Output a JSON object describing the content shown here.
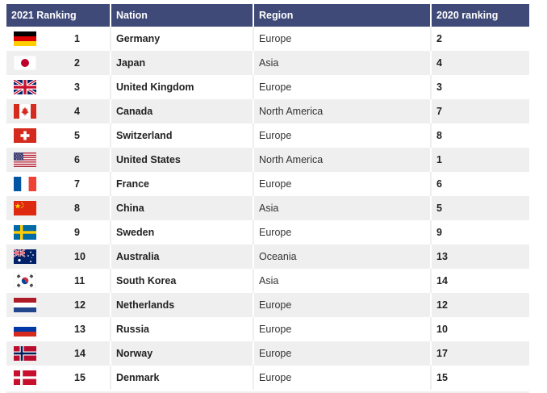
{
  "headers": {
    "rank_2021": "2021 Ranking",
    "nation": "Nation",
    "region": "Region",
    "rank_2020": "2020 ranking"
  },
  "rows": [
    {
      "rank": "1",
      "nation": "Germany",
      "region": "Europe",
      "prev": "2",
      "flag": "germany-flag-icon"
    },
    {
      "rank": "2",
      "nation": "Japan",
      "region": "Asia",
      "prev": "4",
      "flag": "japan-flag-icon"
    },
    {
      "rank": "3",
      "nation": "United Kingdom",
      "region": "Europe",
      "prev": "3",
      "flag": "united-kingdom-flag-icon"
    },
    {
      "rank": "4",
      "nation": "Canada",
      "region": "North America",
      "prev": "7",
      "flag": "canada-flag-icon"
    },
    {
      "rank": "5",
      "nation": "Switzerland",
      "region": "Europe",
      "prev": "8",
      "flag": "switzerland-flag-icon"
    },
    {
      "rank": "6",
      "nation": "United States",
      "region": "North America",
      "prev": "1",
      "flag": "united-states-flag-icon"
    },
    {
      "rank": "7",
      "nation": "France",
      "region": "Europe",
      "prev": "6",
      "flag": "france-flag-icon"
    },
    {
      "rank": "8",
      "nation": "China",
      "region": "Asia",
      "prev": "5",
      "flag": "china-flag-icon"
    },
    {
      "rank": "9",
      "nation": "Sweden",
      "region": "Europe",
      "prev": "9",
      "flag": "sweden-flag-icon"
    },
    {
      "rank": "10",
      "nation": "Australia",
      "region": "Oceania",
      "prev": "13",
      "flag": "australia-flag-icon"
    },
    {
      "rank": "11",
      "nation": "South Korea",
      "region": "Asia",
      "prev": "14",
      "flag": "south-korea-flag-icon"
    },
    {
      "rank": "12",
      "nation": "Netherlands",
      "region": "Europe",
      "prev": "12",
      "flag": "netherlands-flag-icon"
    },
    {
      "rank": "13",
      "nation": "Russia",
      "region": "Europe",
      "prev": "10",
      "flag": "russia-flag-icon"
    },
    {
      "rank": "14",
      "nation": "Norway",
      "region": "Europe",
      "prev": "17",
      "flag": "norway-flag-icon"
    },
    {
      "rank": "15",
      "nation": "Denmark",
      "region": "Europe",
      "prev": "15",
      "flag": "denmark-flag-icon"
    }
  ],
  "colors": {
    "header_bg": "#3f4a78",
    "row_alt_bg": "#efefef"
  }
}
